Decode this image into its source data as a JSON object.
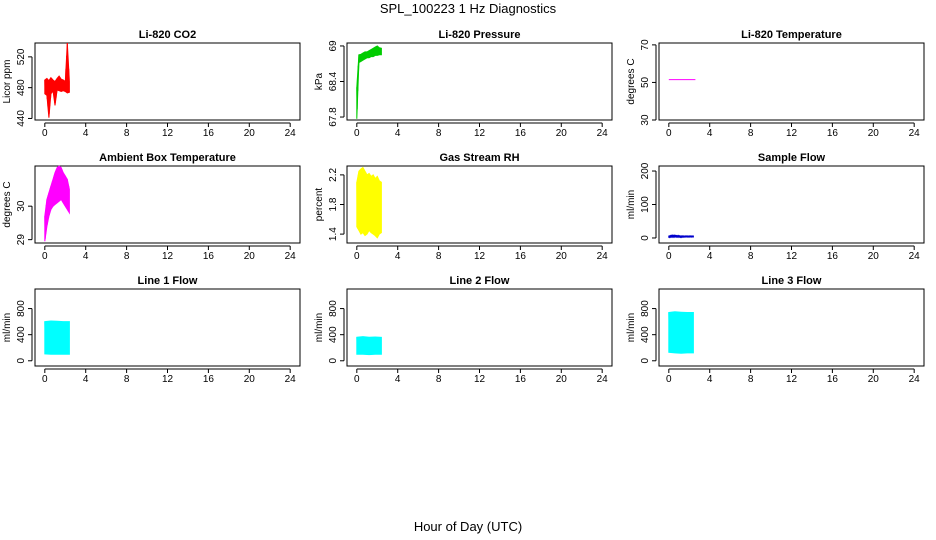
{
  "title": "SPL_100223  1 Hz Diagnostics",
  "xlabel": "Hour of Day (UTC)",
  "chart_data": [
    {
      "type": "line",
      "title": "Li-820 CO2",
      "ylabel": "Licor ppm",
      "color": "#ff0000",
      "xlim": [
        0,
        24
      ],
      "xticks": [
        0,
        4,
        8,
        12,
        16,
        20,
        24
      ],
      "ylim": [
        438,
        538
      ],
      "yticks": [
        440,
        480,
        520
      ],
      "series": [
        {
          "name": "CO2",
          "x": [
            0.0,
            0.2,
            0.4,
            0.6,
            0.8,
            1.0,
            1.2,
            1.4,
            1.6,
            1.8,
            2.0,
            2.2,
            2.4
          ],
          "low": [
            472,
            470,
            441,
            472,
            476,
            457,
            477,
            476,
            475,
            476,
            475,
            473,
            474
          ],
          "high": [
            490,
            492,
            489,
            493,
            490,
            488,
            492,
            495,
            491,
            490,
            488,
            538,
            488
          ]
        }
      ]
    },
    {
      "type": "line",
      "title": "Li-820 Pressure",
      "ylabel": "kPa",
      "color": "#00cc00",
      "xlim": [
        0,
        24
      ],
      "xticks": [
        0,
        4,
        8,
        12,
        16,
        20,
        24
      ],
      "ylim": [
        67.75,
        69.05
      ],
      "yticks": [
        67.8,
        68.4,
        69.0
      ],
      "series": [
        {
          "name": "Pressure",
          "x": [
            0.0,
            0.2,
            0.4,
            0.6,
            0.8,
            1.0,
            1.2,
            1.4,
            1.6,
            1.8,
            2.0,
            2.2,
            2.4
          ],
          "low": [
            67.77,
            68.72,
            68.74,
            68.76,
            68.78,
            68.8,
            68.8,
            68.82,
            68.82,
            68.84,
            68.84,
            68.85,
            68.85
          ],
          "high": [
            68.3,
            68.85,
            68.86,
            68.88,
            68.9,
            68.9,
            68.92,
            68.94,
            68.96,
            68.98,
            69.0,
            68.97,
            68.96
          ]
        }
      ]
    },
    {
      "type": "line",
      "title": "Li-820 Temperature",
      "ylabel": "degrees C",
      "color": "#ff00ff",
      "xlim": [
        0,
        24
      ],
      "xticks": [
        0,
        4,
        8,
        12,
        16,
        20,
        24
      ],
      "ylim": [
        30,
        71
      ],
      "yticks": [
        30,
        50,
        70
      ],
      "series": [
        {
          "name": "Temperature",
          "x": [
            0.0,
            2.6
          ],
          "low": [
            51.5,
            51.5
          ],
          "high": [
            51.5,
            51.5
          ]
        }
      ]
    },
    {
      "type": "line",
      "title": "Ambient Box Temperature",
      "ylabel": "degrees C",
      "color": "#ff00ff",
      "xlim": [
        0,
        24
      ],
      "xticks": [
        0,
        4,
        8,
        12,
        16,
        20,
        24
      ],
      "ylim": [
        28.9,
        31.2
      ],
      "yticks": [
        29.0,
        30.0
      ],
      "series": [
        {
          "name": "Box Temp",
          "x": [
            0.0,
            0.2,
            0.4,
            0.6,
            0.8,
            1.0,
            1.2,
            1.4,
            1.6,
            1.8,
            2.0,
            2.2,
            2.4
          ],
          "low": [
            28.95,
            29.4,
            29.7,
            29.9,
            30.0,
            30.05,
            30.1,
            30.15,
            30.2,
            30.1,
            30.0,
            29.9,
            29.8
          ],
          "high": [
            29.7,
            30.2,
            30.4,
            30.6,
            30.8,
            31.0,
            31.15,
            31.2,
            31.15,
            31.0,
            30.9,
            30.8,
            30.5
          ]
        }
      ]
    },
    {
      "type": "line",
      "title": "Gas Stream RH",
      "ylabel": "percent",
      "color": "#ffff00",
      "xlim": [
        0,
        24
      ],
      "xticks": [
        0,
        4,
        8,
        12,
        16,
        20,
        24
      ],
      "ylim": [
        1.28,
        2.32
      ],
      "yticks": [
        1.4,
        1.8,
        2.2
      ],
      "series": [
        {
          "name": "RH",
          "x": [
            0.0,
            0.2,
            0.4,
            0.6,
            0.8,
            1.0,
            1.2,
            1.4,
            1.6,
            1.8,
            2.0,
            2.2,
            2.4
          ],
          "low": [
            1.5,
            1.45,
            1.4,
            1.42,
            1.38,
            1.4,
            1.45,
            1.42,
            1.4,
            1.38,
            1.35,
            1.4,
            1.42
          ],
          "high": [
            2.1,
            2.25,
            2.28,
            2.3,
            2.25,
            2.2,
            2.22,
            2.18,
            2.2,
            2.15,
            2.18,
            2.12,
            2.1
          ]
        }
      ]
    },
    {
      "type": "line",
      "title": "Sample Flow",
      "ylabel": "ml/min",
      "color": "#0000cc",
      "xlim": [
        0,
        24
      ],
      "xticks": [
        0,
        4,
        8,
        12,
        16,
        20,
        24
      ],
      "ylim": [
        -15,
        215
      ],
      "yticks": [
        0,
        100,
        200
      ],
      "series": [
        {
          "name": "Sample Flow",
          "x": [
            0.0,
            0.4,
            0.8,
            1.2,
            1.6,
            2.0,
            2.4
          ],
          "low": [
            2,
            3,
            3,
            2,
            3,
            3,
            3
          ],
          "high": [
            6,
            8,
            7,
            6,
            6,
            6,
            6
          ]
        }
      ]
    },
    {
      "type": "line",
      "title": "Line 1 Flow",
      "ylabel": "ml/min",
      "color": "#00ffff",
      "xlim": [
        0,
        24
      ],
      "xticks": [
        0,
        4,
        8,
        12,
        16,
        20,
        24
      ],
      "ylim": [
        -80,
        1100
      ],
      "yticks": [
        0,
        400,
        800
      ],
      "series": [
        {
          "name": "Line 1",
          "x": [
            0.0,
            0.6,
            1.2,
            1.8,
            2.4
          ],
          "low": [
            105,
            100,
            100,
            100,
            100
          ],
          "high": [
            600,
            610,
            605,
            600,
            600
          ]
        }
      ]
    },
    {
      "type": "line",
      "title": "Line 2 Flow",
      "ylabel": "ml/min",
      "color": "#00ffff",
      "xlim": [
        0,
        24
      ],
      "xticks": [
        0,
        4,
        8,
        12,
        16,
        20,
        24
      ],
      "ylim": [
        -80,
        1100
      ],
      "yticks": [
        0,
        400,
        800
      ],
      "series": [
        {
          "name": "Line 2",
          "x": [
            0.0,
            0.6,
            1.2,
            1.8,
            2.4
          ],
          "low": [
            100,
            100,
            95,
            100,
            100
          ],
          "high": [
            360,
            370,
            360,
            365,
            360
          ]
        }
      ]
    },
    {
      "type": "line",
      "title": "Line 3 Flow",
      "ylabel": "ml/min",
      "color": "#00ffff",
      "xlim": [
        0,
        24
      ],
      "xticks": [
        0,
        4,
        8,
        12,
        16,
        20,
        24
      ],
      "ylim": [
        -80,
        1100
      ],
      "yticks": [
        0,
        400,
        800
      ],
      "series": [
        {
          "name": "Line 3",
          "x": [
            0.0,
            0.6,
            1.2,
            1.8,
            2.4
          ],
          "low": [
            130,
            120,
            115,
            120,
            120
          ],
          "high": [
            740,
            750,
            745,
            740,
            740
          ]
        }
      ]
    }
  ]
}
